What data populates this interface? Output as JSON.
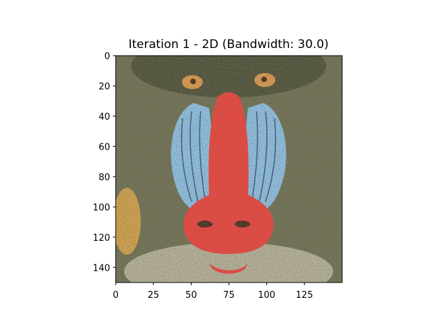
{
  "chart_data": {
    "type": "heatmap",
    "title": "Iteration 1 - 2D (Bandwidth: 30.0)",
    "image_subject": "mandrill face",
    "xlim": [
      0,
      150
    ],
    "ylim": [
      0,
      150
    ],
    "y_inverted": true,
    "x_ticks": [
      0,
      25,
      50,
      75,
      100,
      125
    ],
    "y_ticks": [
      0,
      20,
      40,
      60,
      80,
      100,
      120,
      140
    ],
    "grid": false,
    "colors": {
      "fur_dark": "#4e5038",
      "fur_mid": "#6e6f52",
      "fur_light": "#8f8e70",
      "fur_cream": "#b8b39a",
      "cheek_blue": "#8ec3ea",
      "cheek_stripe": "#3b5c82",
      "nose_red": "#f2403a",
      "eye_amber": "#e09a4a",
      "eye_dark": "#4a2a18",
      "muzzle_tan": "#d6a24a"
    }
  }
}
